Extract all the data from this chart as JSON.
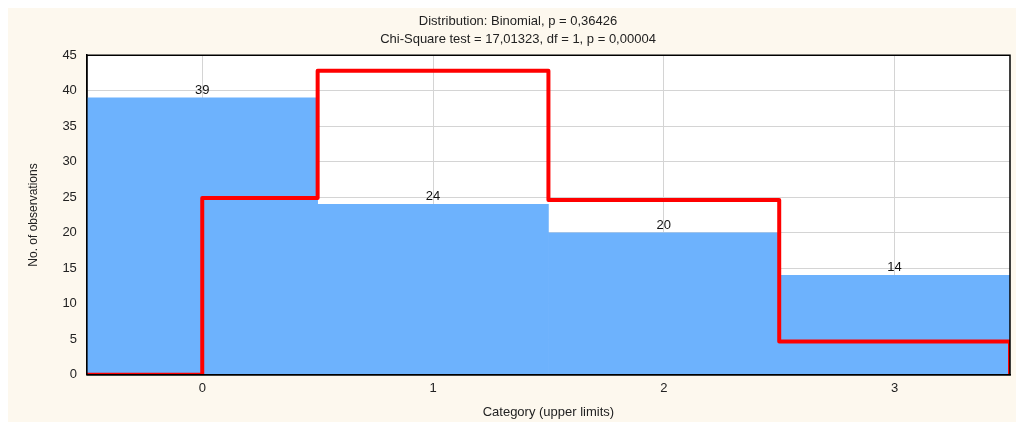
{
  "chart_data": {
    "type": "histogram",
    "title": "Distribution: Binomial, p = 0,36426",
    "subtitle": "Chi-Square test = 17,01323, df = 1, p = 0,00004",
    "xlabel": "Category (upper limits)",
    "ylabel": "No. of observations",
    "bins": [
      -0.5,
      0.5,
      1.5,
      2.5,
      3.5
    ],
    "series": [
      {
        "color": "#6db2fd",
        "values": [
          39,
          24,
          20,
          14
        ],
        "value_labels": [
          "39",
          "24",
          "20",
          "14"
        ]
      },
      {
        "type": "step",
        "color": "#ff0000",
        "x": [
          -0.5,
          0,
          0.5,
          1.5,
          2.5,
          3.5
        ],
        "values": [
          0,
          24.9,
          42.8,
          24.6,
          4.7,
          0
        ]
      }
    ],
    "xlim": [
      -0.5,
      3.5
    ],
    "xticks": [
      0,
      1,
      2,
      3
    ],
    "ylim": [
      0,
      45
    ],
    "yticks": [
      0,
      5,
      10,
      15,
      20,
      25,
      30,
      35,
      40,
      45
    ],
    "grid": true
  }
}
